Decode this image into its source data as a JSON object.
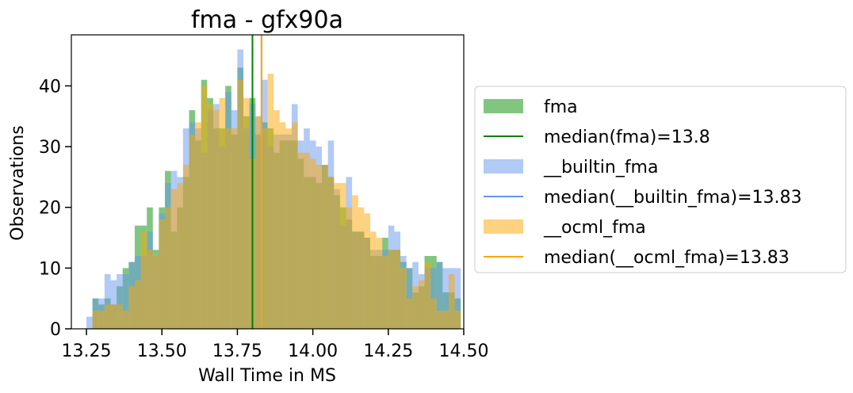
{
  "chart_data": {
    "type": "histogram",
    "title": "fma - gfx90a",
    "xlabel": "Wall Time in MS",
    "ylabel": "Observations",
    "xlim": [
      13.2,
      14.5
    ],
    "ylim": [
      0,
      48.4
    ],
    "x_ticks": [
      13.25,
      13.5,
      13.75,
      14.0,
      14.25,
      14.5
    ],
    "x_tick_labels": [
      "13.25",
      "13.50",
      "13.75",
      "14.00",
      "14.25",
      "14.50"
    ],
    "y_ticks": [
      0,
      10,
      20,
      30,
      40
    ],
    "y_tick_labels": [
      "0",
      "10",
      "20",
      "30",
      "40"
    ],
    "bin_start": 13.25,
    "bin_width": 0.02,
    "grid": false,
    "legend_position": "right, outside plot",
    "series": [
      {
        "name": "fma",
        "color": "#2ca02c",
        "opacity": 0.6,
        "values": [
          0,
          5,
          4,
          5,
          4,
          7,
          10,
          11,
          17,
          17,
          20,
          13,
          20,
          26,
          16,
          20,
          25,
          36,
          31,
          41,
          38,
          33,
          33,
          40,
          32,
          43,
          35,
          38,
          32,
          34,
          33,
          29,
          31,
          31,
          31,
          28,
          25,
          25,
          24,
          27,
          25,
          22,
          20,
          18,
          16,
          16,
          15,
          12,
          12,
          15,
          13,
          13,
          11,
          10,
          6,
          7,
          12,
          12,
          11,
          6,
          6,
          5
        ]
      },
      {
        "name": "__builtin_fma",
        "color": "#6495ed",
        "opacity": 0.5,
        "values": [
          2,
          5,
          5,
          9,
          8,
          9,
          9,
          11,
          12,
          12,
          16,
          12,
          19,
          24,
          26,
          25,
          33,
          34,
          33,
          29,
          36,
          37,
          30,
          39,
          36,
          46,
          33,
          37,
          35,
          41,
          30,
          32,
          32,
          32,
          37,
          31,
          33,
          31,
          30,
          27,
          31,
          23,
          17,
          25,
          16,
          16,
          15,
          13,
          13,
          13,
          17,
          16,
          12,
          10,
          11,
          9,
          10,
          10,
          11,
          10,
          10,
          10
        ]
      },
      {
        "name": "__ocml_fma",
        "color": "#ffa500",
        "opacity": 0.5,
        "values": [
          0,
          3,
          3,
          4,
          4,
          4,
          3,
          7,
          8,
          16,
          13,
          12,
          18,
          20,
          23,
          24,
          27,
          32,
          34,
          40,
          37,
          36,
          38,
          33,
          33,
          41,
          38,
          28,
          35,
          33,
          42,
          36,
          34,
          33,
          34,
          29,
          29,
          28,
          27,
          27,
          25,
          24,
          24,
          20,
          22,
          20,
          19,
          16,
          15,
          12,
          13,
          13,
          10,
          5,
          7,
          8,
          11,
          5,
          3,
          3,
          9,
          3
        ]
      }
    ],
    "vlines": [
      {
        "name": "median(fma)=13.8",
        "x": 13.8,
        "color": "#008000"
      },
      {
        "name": "median(__builtin_fma)=13.83",
        "x": 13.83,
        "color": "#6495ed"
      },
      {
        "name": "median(__ocml_fma)=13.83",
        "x": 13.83,
        "color": "#ffa500"
      }
    ]
  },
  "legend": {
    "items": [
      {
        "label": "fma",
        "kind": "patch",
        "color": "#2ca02c",
        "opacity": 0.6
      },
      {
        "label": "median(fma)=13.8",
        "kind": "line",
        "color": "#008000"
      },
      {
        "label": "__builtin_fma",
        "kind": "patch",
        "color": "#6495ed",
        "opacity": 0.5
      },
      {
        "label": "median(__builtin_fma)=13.83",
        "kind": "line",
        "color": "#6495ed"
      },
      {
        "label": "__ocml_fma",
        "kind": "patch",
        "color": "#ffa500",
        "opacity": 0.5
      },
      {
        "label": "median(__ocml_fma)=13.83",
        "kind": "line",
        "color": "#ffa500"
      }
    ]
  }
}
